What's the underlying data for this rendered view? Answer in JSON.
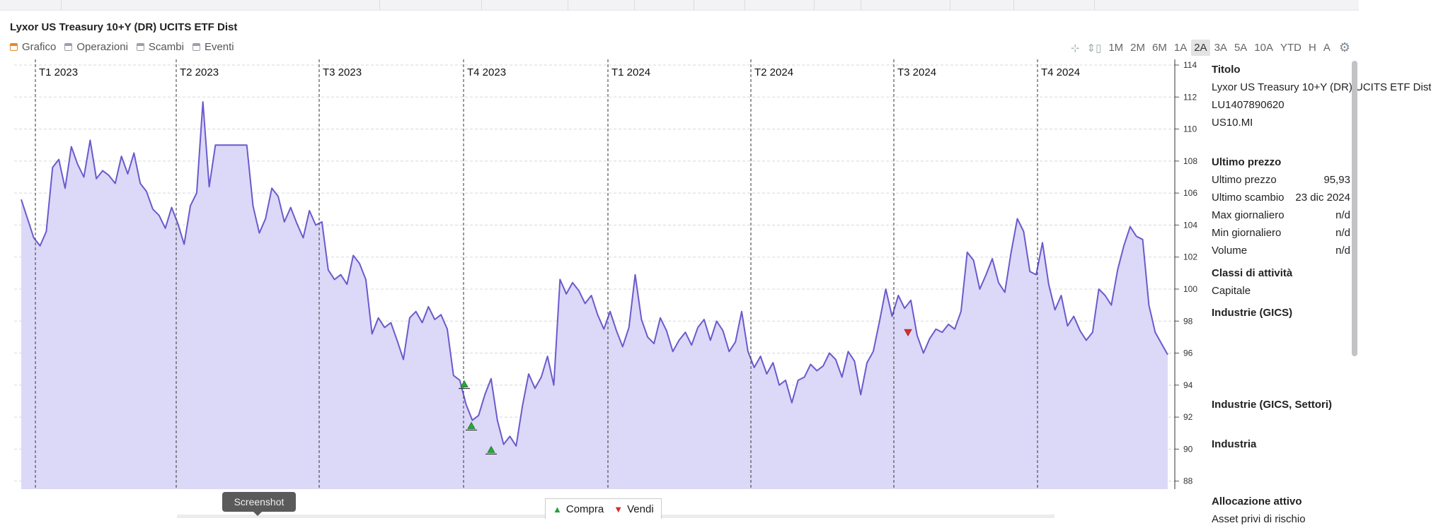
{
  "window": {
    "title": "Lyxor US Treasury 10+Y (DR) UCITS ETF Dist"
  },
  "tabs": [
    {
      "label": "Grafico",
      "active": true
    },
    {
      "label": "Operazioni",
      "active": false
    },
    {
      "label": "Scambi",
      "active": false
    },
    {
      "label": "Eventi",
      "active": false
    }
  ],
  "toolbar": {
    "crosshair_icon": "crosshair-icon",
    "scale_icon": "vertical-scale-icon",
    "ranges": [
      "1M",
      "2M",
      "6M",
      "1A",
      "2A",
      "3A",
      "5A",
      "10A",
      "YTD",
      "H",
      "A"
    ],
    "selected_range": "2A",
    "settings_icon": "gear-icon"
  },
  "chart_data": {
    "type": "area",
    "quarters": [
      "T1 2023",
      "T2 2023",
      "T3 2023",
      "T4 2023",
      "T1 2024",
      "T2 2024",
      "T3 2024",
      "T4 2024"
    ],
    "y_ticks": [
      88,
      90,
      92,
      94,
      96,
      98,
      100,
      102,
      104,
      106,
      108,
      110,
      112,
      114
    ],
    "ylim": [
      87.5,
      114
    ],
    "grid": true,
    "line_color": "#6a5acd",
    "fill_color": "#dcd8f7",
    "buy_color": "#2aa63a",
    "sell_color": "#d83030",
    "series": [
      {
        "values": [
          105.6,
          104.4,
          103.2,
          102.7,
          103.6,
          107.6,
          108.1,
          106.3,
          108.9,
          107.8,
          107.0,
          109.3,
          106.9,
          107.4,
          107.1,
          106.6,
          108.3,
          107.2,
          108.5,
          106.6,
          106.1,
          105.0,
          104.6,
          103.8,
          105.1,
          104.1,
          102.8,
          105.2,
          106.0,
          111.7,
          106.4,
          109.0,
          109.0,
          109.0,
          109.0,
          109.0,
          109.0,
          105.2,
          103.5,
          104.4,
          106.3,
          105.8,
          104.2,
          105.1,
          104.1,
          103.2,
          104.9,
          104.0,
          104.2,
          101.2,
          100.6,
          100.9,
          100.3,
          102.1,
          101.6,
          100.6,
          97.2,
          98.2,
          97.6,
          97.9,
          96.8,
          95.6,
          98.2,
          98.6,
          97.9,
          98.9,
          98.1,
          98.4,
          97.5,
          94.6,
          94.3,
          92.8,
          91.8,
          92.1,
          93.4,
          94.4,
          91.8,
          90.3,
          90.8,
          90.2,
          92.7,
          94.7,
          93.8,
          94.5,
          95.8,
          94.0,
          100.6,
          99.7,
          100.4,
          99.9,
          99.1,
          99.6,
          98.4,
          97.5,
          98.6,
          97.4,
          96.4,
          97.6,
          100.9,
          98.1,
          97.0,
          96.6,
          98.2,
          97.4,
          96.1,
          96.8,
          97.3,
          96.5,
          97.6,
          98.1,
          96.8,
          98.0,
          97.4,
          96.1,
          96.7,
          98.6,
          96.1,
          95.1,
          95.8,
          94.7,
          95.4,
          94.0,
          94.3,
          92.9,
          94.3,
          94.5,
          95.3,
          94.9,
          95.2,
          96.0,
          95.6,
          94.5,
          96.1,
          95.5,
          93.4,
          95.4,
          96.1,
          98.0,
          100.0,
          98.3,
          99.6,
          98.8,
          99.3,
          97.1,
          96.0,
          96.9,
          97.5,
          97.3,
          97.8,
          97.5,
          98.6,
          102.3,
          101.8,
          100.0,
          100.9,
          101.9,
          100.4,
          99.8,
          102.3,
          104.4,
          103.6,
          101.1,
          100.9,
          102.9,
          100.3,
          98.7,
          99.6,
          97.7,
          98.3,
          97.4,
          96.8,
          97.3,
          100.0,
          99.6,
          99.0,
          101.2,
          102.7,
          103.9,
          103.3,
          103.1,
          99.0,
          97.3,
          96.6,
          95.9
        ]
      }
    ],
    "buy_markers": [
      94.1,
      91.5,
      90.0
    ],
    "sell_markers": [
      97.3
    ]
  },
  "side": {
    "titolo_header": "Titolo",
    "titolo_lines": [
      "Lyxor US Treasury 10+Y (DR) UCITS ETF Dist",
      "LU1407890620",
      "US10.MI"
    ],
    "ultimo_header": "Ultimo prezzo",
    "rows": [
      {
        "label": "Ultimo prezzo",
        "value": "95,93"
      },
      {
        "label": "Ultimo scambio",
        "value": "23 dic 2024"
      },
      {
        "label": "Max giornaliero",
        "value": "n/d"
      },
      {
        "label": "Min giornaliero",
        "value": "n/d"
      },
      {
        "label": "Volume",
        "value": "n/d"
      }
    ],
    "classi_header": "Classi di attività",
    "classi_value": "Capitale",
    "industrie_header": "Industrie (GICS)",
    "industrie_settori_header": "Industrie (GICS, Settori)",
    "industria_header": "Industria",
    "allocazione_header": "Allocazione attivo",
    "allocazione_first": "Asset privi di rischio"
  },
  "overlay": {
    "screenshot_label": "Screenshot",
    "legend_buy": "Compra",
    "legend_sell": "Vendi"
  }
}
